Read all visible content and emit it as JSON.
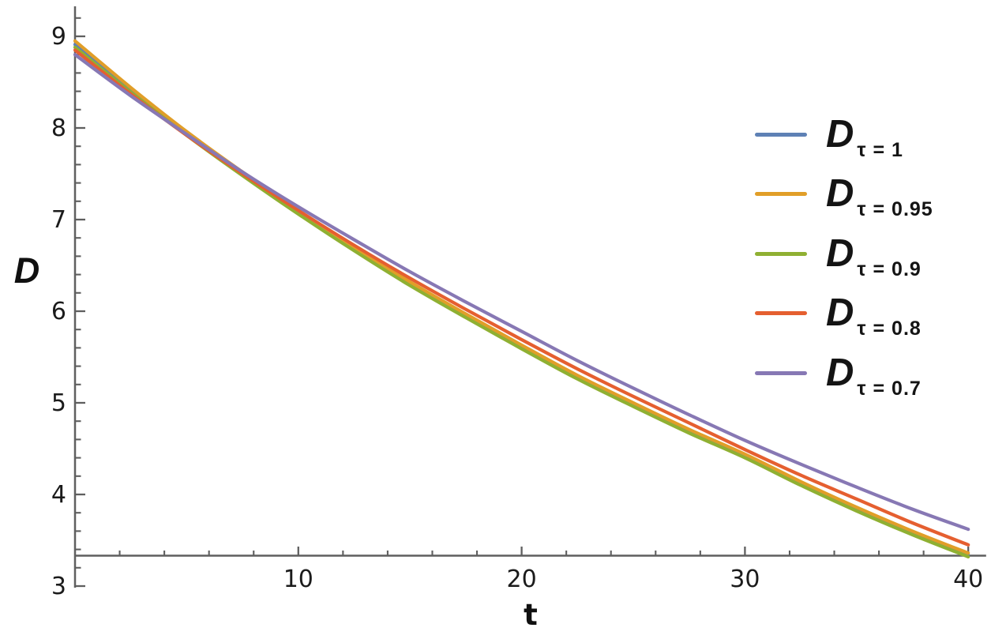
{
  "figure": {
    "background_color": "#ffffff",
    "axis_color": "#5f5f5f",
    "tick_label_color": "#1b1b1b",
    "text_color": "#141414"
  },
  "chart_data": {
    "type": "line",
    "title": "",
    "xlabel": "t",
    "ylabel": "D",
    "xlim": [
      0,
      40.8
    ],
    "ylim": [
      3,
      9.2
    ],
    "grid": false,
    "legend_position": "inside-upper-right",
    "x_major_ticks": [
      10,
      20,
      30,
      40
    ],
    "x_minor_tick_step": 2,
    "y_major_ticks": [
      3,
      4,
      5,
      6,
      7,
      8,
      9
    ],
    "y_minor_tick_step": 0.2,
    "x": [
      0,
      2.5,
      5,
      7.5,
      10,
      12.5,
      15,
      17.5,
      20,
      22.5,
      25,
      27.5,
      30,
      32.5,
      35,
      37.5,
      40
    ],
    "series": [
      {
        "name": "D_tau=1",
        "legend_base": "D",
        "legend_sub": "τ = 1",
        "color": "#5e81b5",
        "values": [
          8.91,
          8.41,
          7.94,
          7.5,
          7.08,
          6.68,
          6.3,
          5.95,
          5.61,
          5.28,
          4.98,
          4.69,
          4.42,
          4.12,
          3.84,
          3.58,
          3.34
        ]
      },
      {
        "name": "D_tau=0.95",
        "legend_base": "D",
        "legend_sub": "τ = 0.95",
        "color": "#e19e28",
        "values": [
          8.95,
          8.44,
          7.96,
          7.52,
          7.1,
          6.7,
          6.32,
          5.97,
          5.63,
          5.3,
          5.0,
          4.71,
          4.44,
          4.14,
          3.86,
          3.6,
          3.36
        ]
      },
      {
        "name": "D_tau=0.9",
        "legend_base": "D",
        "legend_sub": "τ = 0.9",
        "color": "#8fb032",
        "values": [
          8.88,
          8.39,
          7.92,
          7.48,
          7.06,
          6.66,
          6.28,
          5.93,
          5.59,
          5.26,
          4.96,
          4.67,
          4.4,
          4.1,
          3.82,
          3.56,
          3.32
        ]
      },
      {
        "name": "D_tau=0.8",
        "legend_base": "D",
        "legend_sub": "τ = 0.8",
        "color": "#e55f30",
        "values": [
          8.85,
          8.37,
          7.92,
          7.5,
          7.1,
          6.72,
          6.36,
          6.02,
          5.69,
          5.37,
          5.07,
          4.78,
          4.49,
          4.21,
          3.95,
          3.69,
          3.45
        ]
      },
      {
        "name": "D_tau=0.7",
        "legend_base": "D",
        "legend_sub": "τ = 0.7",
        "color": "#8778b4",
        "values": [
          8.8,
          8.35,
          7.93,
          7.52,
          7.14,
          6.78,
          6.43,
          6.1,
          5.78,
          5.46,
          5.16,
          4.87,
          4.59,
          4.33,
          4.08,
          3.84,
          3.62
        ]
      }
    ]
  }
}
